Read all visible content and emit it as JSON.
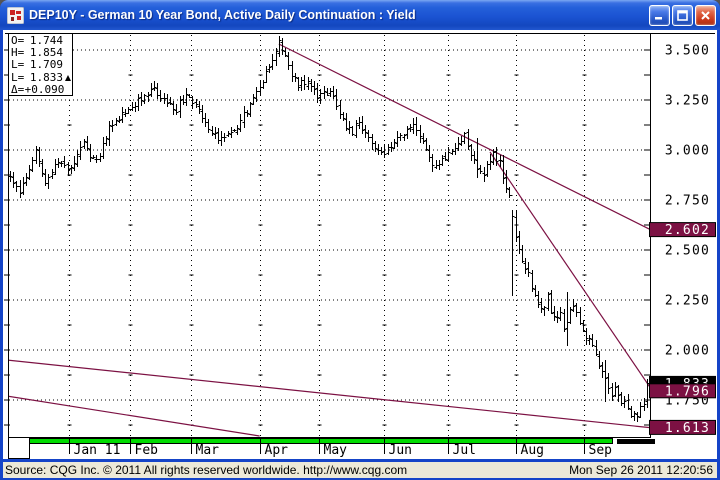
{
  "window": {
    "title": "DEP10Y - German 10 Year Bond, Active Daily Continuation : Yield"
  },
  "quote_box": {
    "rows": [
      {
        "label": "O=",
        "value": "1.744",
        "arrow": false
      },
      {
        "label": "H=",
        "value": "1.854",
        "arrow": false
      },
      {
        "label": "L=",
        "value": "1.709",
        "arrow": false
      },
      {
        "label": "L=",
        "value": "1.833",
        "arrow": true
      },
      {
        "label": "Δ=",
        "value": "+0.090",
        "arrow": false
      }
    ]
  },
  "status_bar": {
    "left": "Source: CQG Inc. © 2011 All rights reserved worldwide. http://www.cqg.com",
    "right": "Mon Sep 26 2011 12:20:56"
  },
  "colors": {
    "trendline": "#7c1143",
    "marker_maroon_bg": "#7c1143",
    "marker_black_bg": "#000000",
    "marker_text": "#ffffff",
    "bar": "#000000",
    "grid": "#000000",
    "scrollbar_green": "#00dc00",
    "scrollbar_thumb": "#000000",
    "status_bg": "#ece9d8"
  },
  "chart_data": {
    "type": "ohlc-bar",
    "title": "German 10 Year Bond Yield, Active Daily Continuation",
    "bars_count": 200,
    "y_axis": {
      "major_ticks": [
        {
          "label": "3.500",
          "value": 3.5
        },
        {
          "label": "3.250",
          "value": 3.25
        },
        {
          "label": "3.000",
          "value": 3.0
        },
        {
          "label": "2.750",
          "value": 2.75
        },
        {
          "label": "2.500",
          "value": 2.5
        },
        {
          "label": "2.250",
          "value": 2.25
        },
        {
          "label": "2.000",
          "value": 2.0
        },
        {
          "label": "1.750",
          "value": 1.75
        }
      ],
      "minor_step": 0.125,
      "top_value": 3.5,
      "minor_levels": [
        3.375,
        3.125,
        2.875,
        2.625,
        2.375,
        2.125,
        1.875,
        1.625
      ]
    },
    "x_axis": {
      "months": [
        {
          "label": "Jan 11",
          "t": 18.5
        },
        {
          "label": "Feb",
          "t": 37.5
        },
        {
          "label": "Mar",
          "t": 56.5
        },
        {
          "label": "Apr",
          "t": 78
        },
        {
          "label": "May",
          "t": 96.5
        },
        {
          "label": "Jun",
          "t": 117
        },
        {
          "label": "Jul",
          "t": 137
        },
        {
          "label": "Aug",
          "t": 158
        },
        {
          "label": "Sep",
          "t": 179.5
        }
      ]
    },
    "last_bar": {
      "open": 1.744,
      "high": 1.854,
      "low": 1.709,
      "close": 1.833,
      "net_change": 0.09
    },
    "price_markers": [
      {
        "value": "1.833",
        "price": 1.833,
        "type": "last"
      },
      {
        "value": "2.602",
        "price": 2.602,
        "type": "trend"
      },
      {
        "value": "1.796",
        "price": 1.796,
        "type": "trend"
      },
      {
        "value": "1.613",
        "price": 1.613,
        "type": "trend"
      }
    ],
    "waypoints": [
      [
        0,
        2.88
      ],
      [
        3,
        2.79
      ],
      [
        8,
        3.0
      ],
      [
        11,
        2.85
      ],
      [
        15,
        2.96
      ],
      [
        18,
        2.9
      ],
      [
        23,
        3.03
      ],
      [
        27,
        2.94
      ],
      [
        31,
        3.12
      ],
      [
        36,
        3.2
      ],
      [
        41,
        3.26
      ],
      [
        45,
        3.32
      ],
      [
        48,
        3.25
      ],
      [
        52,
        3.2
      ],
      [
        55,
        3.29
      ],
      [
        58,
        3.23
      ],
      [
        62,
        3.1
      ],
      [
        66,
        3.05
      ],
      [
        70,
        3.1
      ],
      [
        75,
        3.22
      ],
      [
        79,
        3.34
      ],
      [
        82,
        3.46
      ],
      [
        84,
        3.53
      ],
      [
        87,
        3.42
      ],
      [
        90,
        3.32
      ],
      [
        93,
        3.36
      ],
      [
        96,
        3.28
      ],
      [
        100,
        3.3
      ],
      [
        104,
        3.15
      ],
      [
        107,
        3.09
      ],
      [
        109,
        3.14
      ],
      [
        113,
        3.02
      ],
      [
        116,
        2.99
      ],
      [
        119,
        3.01
      ],
      [
        123,
        3.09
      ],
      [
        126,
        3.12
      ],
      [
        129,
        3.03
      ],
      [
        132,
        2.92
      ],
      [
        136,
        2.97
      ],
      [
        139,
        3.03
      ],
      [
        142,
        3.07
      ],
      [
        145,
        2.94
      ],
      [
        148,
        2.89
      ],
      [
        151,
        2.99
      ],
      [
        153,
        2.94
      ],
      [
        156,
        2.76
      ],
      [
        158,
        2.56
      ],
      [
        160,
        2.44
      ],
      [
        162,
        2.37
      ],
      [
        164,
        2.29
      ],
      [
        166,
        2.2
      ],
      [
        168,
        2.26
      ],
      [
        170,
        2.15
      ],
      [
        172,
        2.2
      ],
      [
        173,
        2.12
      ],
      [
        176,
        2.22
      ],
      [
        178,
        2.13
      ],
      [
        180,
        2.07
      ],
      [
        182,
        2.01
      ],
      [
        184,
        1.93
      ],
      [
        186,
        1.85
      ],
      [
        188,
        1.77
      ],
      [
        189,
        1.82
      ],
      [
        191,
        1.75
      ],
      [
        193,
        1.71
      ],
      [
        195,
        1.67
      ],
      [
        197,
        1.7
      ],
      [
        198,
        1.74
      ],
      [
        199,
        1.79
      ]
    ],
    "range_events": [
      {
        "t": 146,
        "h": 3.06,
        "l": 2.86
      },
      {
        "t": 157,
        "h": 2.7,
        "l": 2.27
      },
      {
        "t": 174,
        "h": 2.29,
        "l": 2.02
      },
      {
        "t": 186,
        "h": 1.95,
        "l": 1.74
      }
    ],
    "trendlines": [
      {
        "name": "downtrend-major",
        "pts": [
          [
            84,
            3.53
          ],
          [
            201,
            2.595
          ]
        ]
      },
      {
        "name": "downtrend-steep",
        "pts": [
          [
            150,
            2.99
          ],
          [
            201,
            1.79
          ]
        ]
      },
      {
        "name": "support-lower",
        "pts": [
          [
            -1,
            1.95
          ],
          [
            201,
            1.61
          ]
        ]
      },
      {
        "name": "support-steep",
        "pts": [
          [
            -1,
            1.77
          ],
          [
            78,
            1.57
          ]
        ]
      }
    ]
  }
}
